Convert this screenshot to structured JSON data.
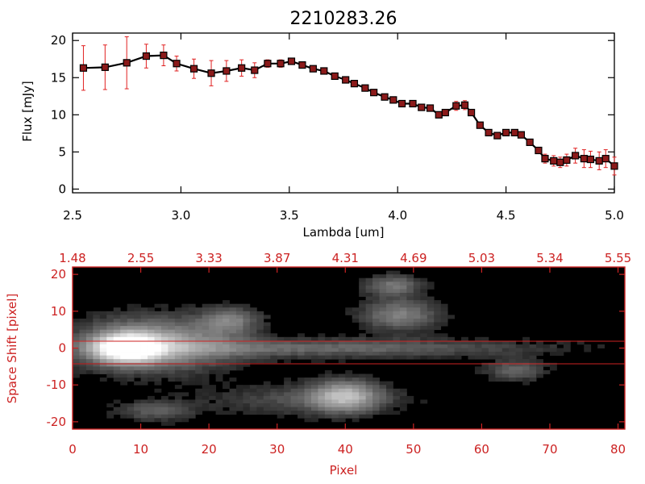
{
  "chart_data": [
    {
      "type": "line",
      "title": "2210283.26",
      "xlabel": "Lambda [um]",
      "ylabel": "Flux [mJy]",
      "xlim": [
        2.5,
        5.0
      ],
      "ylim": [
        -0.5,
        21
      ],
      "x_ticks": [
        "2.5",
        "3.0",
        "3.5",
        "4.0",
        "4.5",
        "5.0"
      ],
      "y_ticks": [
        "0",
        "5",
        "10",
        "15",
        "20"
      ],
      "grid": false,
      "colors": {
        "line": "#000000",
        "marker": "#8b1a1a",
        "errorbar": "#e02020"
      },
      "series": [
        {
          "x": [
            2.55,
            2.65,
            2.75,
            2.84,
            2.92,
            2.98,
            3.06,
            3.14,
            3.21,
            3.28,
            3.34,
            3.4,
            3.46,
            3.51,
            3.56,
            3.61,
            3.66,
            3.71,
            3.76,
            3.8,
            3.85,
            3.89,
            3.94,
            3.98,
            4.02,
            4.07,
            4.11,
            4.15,
            4.19,
            4.22,
            4.27,
            4.31,
            4.34,
            4.38,
            4.42,
            4.46,
            4.5,
            4.54,
            4.57,
            4.61,
            4.65,
            4.68,
            4.72,
            4.75,
            4.78,
            4.82,
            4.86,
            4.89,
            4.93,
            4.96,
            5.0
          ],
          "y": [
            16.3,
            16.4,
            17.0,
            17.9,
            18.0,
            16.9,
            16.2,
            15.6,
            15.9,
            16.3,
            16.0,
            16.9,
            16.9,
            17.2,
            16.7,
            16.2,
            15.9,
            15.2,
            14.7,
            14.2,
            13.6,
            13.0,
            12.4,
            12.0,
            11.5,
            11.5,
            11.0,
            10.9,
            10.0,
            10.3,
            11.2,
            11.3,
            10.3,
            8.6,
            7.6,
            7.2,
            7.6,
            7.6,
            7.3,
            6.3,
            5.2,
            4.1,
            3.8,
            3.6,
            3.9,
            4.5,
            4.1,
            4.0,
            3.8,
            4.1,
            3.1
          ],
          "err": [
            3.0,
            3.0,
            3.5,
            1.6,
            1.4,
            1.0,
            1.3,
            1.7,
            1.4,
            1.1,
            1.0,
            0.5,
            0.5,
            0.4,
            0.4,
            0.4,
            0.4,
            0.4,
            0.4,
            0.4,
            0.4,
            0.4,
            0.4,
            0.4,
            0.4,
            0.4,
            0.4,
            0.4,
            0.4,
            0.4,
            0.6,
            0.6,
            0.4,
            0.4,
            0.4,
            0.4,
            0.4,
            0.4,
            0.4,
            0.4,
            0.4,
            0.6,
            0.7,
            0.7,
            0.8,
            1.0,
            1.2,
            1.1,
            1.2,
            1.2,
            1.2
          ]
        }
      ]
    },
    {
      "type": "heatmap",
      "xlabel": "Pixel",
      "ylabel": "Space Shift [pixel]",
      "xlim": [
        0,
        81
      ],
      "ylim": [
        -22,
        22
      ],
      "x_ticks": [
        "0",
        "10",
        "20",
        "30",
        "40",
        "50",
        "60",
        "70",
        "80"
      ],
      "y_ticks": [
        "-20",
        "-10",
        "0",
        "10",
        "20"
      ],
      "top_ticks": [
        "1.48",
        "2.55",
        "3.33",
        "3.87",
        "4.31",
        "4.69",
        "5.03",
        "5.34",
        "5.55"
      ],
      "extraction_window": [
        -3,
        3
      ],
      "colormap": "grayscale",
      "colors": {
        "axis": "#cc2222",
        "window_line": "#cc2222",
        "background": "#000000"
      },
      "sources": [
        {
          "x": 8,
          "y": 0,
          "amp": 1.0,
          "sx": 3.2,
          "sy": 2.6
        },
        {
          "x": 12,
          "y": 1,
          "amp": 0.55,
          "sx": 8,
          "sy": 5
        },
        {
          "x": 40,
          "y": -13,
          "amp": 0.55,
          "sx": 3.5,
          "sy": 3
        },
        {
          "x": 34,
          "y": -14,
          "amp": 0.2,
          "sx": 10,
          "sy": 3
        },
        {
          "x": 23,
          "y": 7.5,
          "amp": 0.35,
          "sx": 3,
          "sy": 2.5
        },
        {
          "x": 48,
          "y": 9,
          "amp": 0.4,
          "sx": 4,
          "sy": 3
        },
        {
          "x": 47,
          "y": 17,
          "amp": 0.35,
          "sx": 3,
          "sy": 2
        },
        {
          "x": 65,
          "y": -6,
          "amp": 0.3,
          "sx": 3,
          "sy": 2
        },
        {
          "x": 12,
          "y": -17,
          "amp": 0.25,
          "sx": 4,
          "sy": 2
        },
        {
          "x": 38,
          "y": 0,
          "amp": 0.3,
          "sx": 22,
          "sy": 1.8
        }
      ]
    }
  ]
}
